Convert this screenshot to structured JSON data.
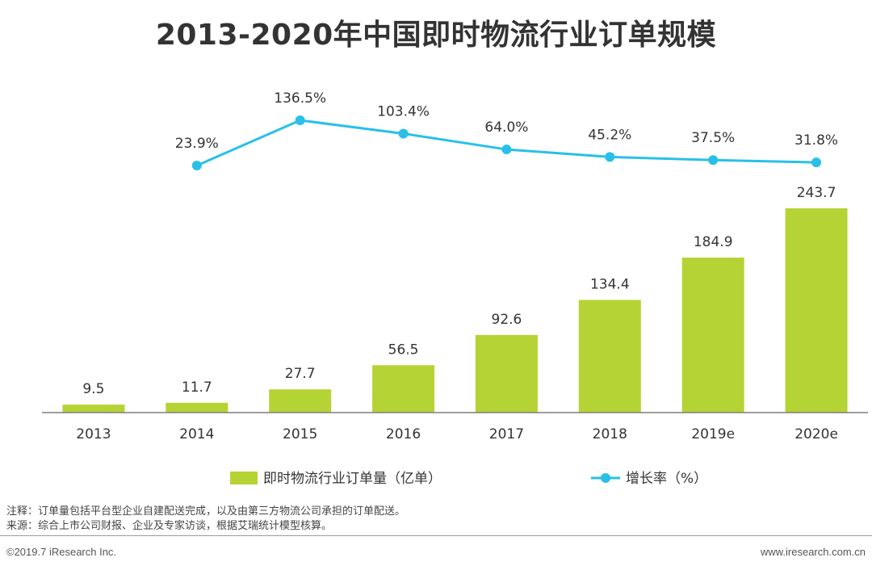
{
  "title": "2013-2020年中国即时物流行业订单规模",
  "chart_data": {
    "type": "bar",
    "categories": [
      "2013",
      "2014",
      "2015",
      "2016",
      "2017",
      "2018",
      "2019e",
      "2020e"
    ],
    "series": [
      {
        "name": "即时物流行业订单量（亿单）",
        "type": "bar",
        "values": [
          9.5,
          11.7,
          27.7,
          56.5,
          92.6,
          134.4,
          184.9,
          243.7
        ],
        "labels": [
          "9.5",
          "11.7",
          "27.7",
          "56.5",
          "92.6",
          "134.4",
          "184.9",
          "243.7"
        ]
      },
      {
        "name": "增长率（%）",
        "type": "line",
        "values": [
          null,
          23.9,
          136.5,
          103.4,
          64.0,
          45.2,
          37.5,
          31.8
        ],
        "labels": [
          "",
          "23.9%",
          "136.5%",
          "103.4%",
          "64.0%",
          "45.2%",
          "37.5%",
          "31.8%"
        ]
      }
    ],
    "colors": {
      "bar": "#b5d334",
      "line": "#28c0e8",
      "axis": "#7f7f7f"
    },
    "legend_position": "bottom",
    "grid": false
  },
  "notes": {
    "note": "注释：订单量包括平台型企业自建配送完成，以及由第三方物流公司承担的订单配送。",
    "source": "来源：综合上市公司财报、企业及专家访谈，根据艾瑞统计模型核算。"
  },
  "footer": {
    "copyright": "©2019.7 iResearch Inc.",
    "website": "www.iresearch.com.cn"
  }
}
